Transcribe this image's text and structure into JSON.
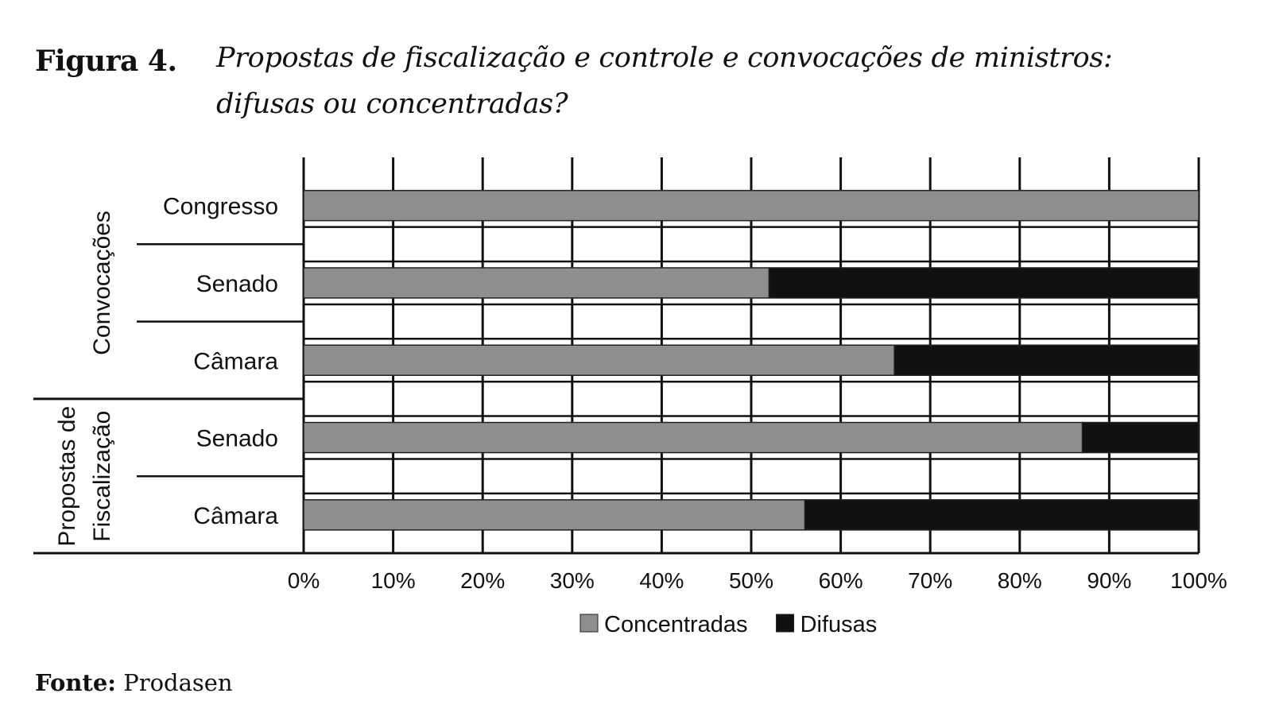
{
  "figure": {
    "label": "Figura 4.",
    "title_line1": "Propostas de fiscalização e controle e convocações de ministros:",
    "title_line2": "difusas ou concentradas?"
  },
  "source": {
    "label": "Fonte:",
    "text": "Prodasen"
  },
  "colors": {
    "concentradas": "#8e8e8e",
    "difusas": "#111111"
  },
  "chart_data": {
    "type": "bar",
    "orientation": "horizontal",
    "stacked": true,
    "xlim": [
      0,
      100
    ],
    "x_ticks": [
      "0%",
      "10%",
      "20%",
      "30%",
      "40%",
      "50%",
      "60%",
      "70%",
      "80%",
      "90%",
      "100%"
    ],
    "grid": true,
    "legend_position": "bottom",
    "groups": [
      {
        "name": "Convocações",
        "categories": [
          "Congresso",
          "Senado",
          "Câmara"
        ]
      },
      {
        "name": "Propostas de Fiscalização",
        "categories": [
          "Senado",
          "Câmara"
        ]
      }
    ],
    "categories": [
      "Congresso",
      "Senado",
      "Câmara",
      "Senado",
      "Câmara"
    ],
    "series": [
      {
        "name": "Concentradas",
        "values": [
          100,
          52,
          66,
          87,
          56
        ]
      },
      {
        "name": "Difusas",
        "values": [
          0,
          48,
          34,
          13,
          44
        ]
      }
    ]
  }
}
